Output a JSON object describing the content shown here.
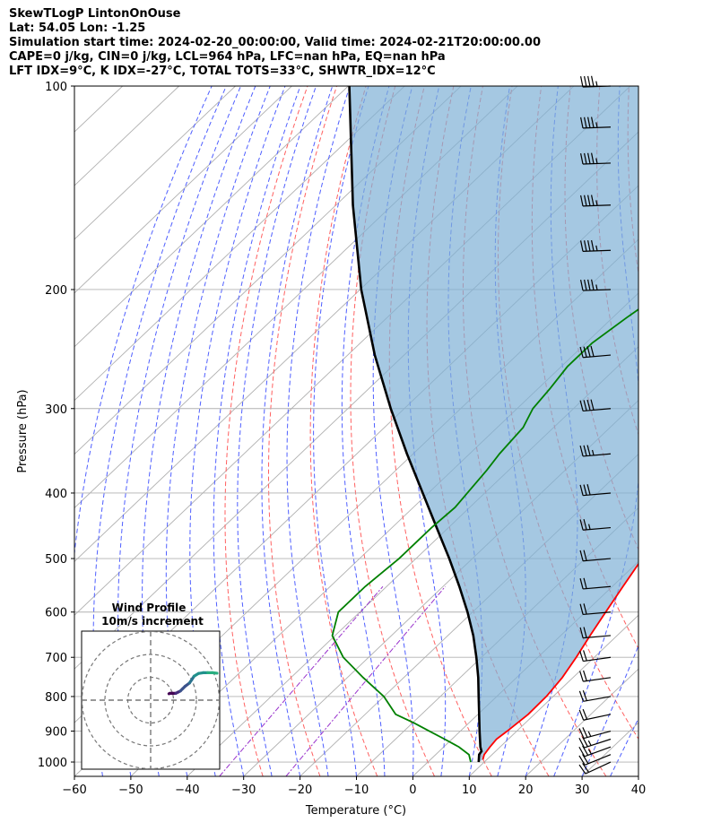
{
  "header": {
    "line1": "SkewTLogP LintonOnOuse",
    "line2": "Lat: 54.05   Lon: -1.25",
    "line3": "Simulation start time: 2024-02-20_00:00:00, Valid time: 2024-02-21T20:00:00.00",
    "line4": "CAPE=0 j/kg, CIN=0 j/kg, LCL=964 hPa, LFC=nan hPa, EQ=nan hPa",
    "line5": "LFT IDX=9°C, K IDX=-27°C, TOTAL TOTS=33°C, SHWTR_IDX=12°C"
  },
  "chart_data": {
    "type": "skewt",
    "xlabel": "Temperature (°C)",
    "ylabel": "Pressure (hPa)",
    "xlim": [
      -60,
      40
    ],
    "ylim": [
      1050,
      100
    ],
    "x_ticks": [
      -60,
      -50,
      -40,
      -30,
      -20,
      -10,
      0,
      10,
      20,
      30,
      40
    ],
    "x_tick_labels": [
      "−60",
      "−50",
      "−40",
      "−30",
      "−20",
      "−10",
      "0",
      "10",
      "20",
      "30",
      "40"
    ],
    "y_ticks": [
      1000,
      900,
      800,
      700,
      600,
      500,
      400,
      300,
      200,
      100
    ],
    "y_tick_labels": [
      "1000",
      "900",
      "800",
      "700",
      "600",
      "500",
      "400",
      "300",
      "200",
      "100"
    ],
    "colors": {
      "temperature": "#ff0000",
      "dewpoint": "#008000",
      "parcel": "#000000",
      "cape_fill": "#7fb1d6",
      "dry_adiabat": "#ff6060",
      "moist_adiabat": "#4f5fff",
      "mixing_ratio": "#9933cc",
      "isotherm": "#b0b0b0"
    },
    "temperature": {
      "pressure": [
        992,
        975,
        950,
        925,
        900,
        875,
        850,
        800,
        750,
        700,
        650,
        600,
        550,
        500,
        450,
        420,
        400,
        370,
        350,
        320,
        300,
        280,
        260,
        250,
        240,
        230,
        220,
        210,
        200,
        190,
        180,
        170,
        160,
        150,
        140,
        130,
        120,
        110,
        100
      ],
      "value": [
        9.3,
        8.6,
        8.2,
        7.9,
        8.3,
        8.6,
        8.9,
        8.8,
        8.1,
        6.8,
        5.2,
        3.6,
        1.9,
        0.1,
        -1.6,
        -2.6,
        -2.9,
        -3.6,
        -4.4,
        -6.2,
        -7.6,
        -10.0,
        -12.5,
        -13.8,
        -14.8,
        -15.1,
        -14.6,
        -13.8,
        -12.8,
        -11.5,
        -9.8,
        -7.0,
        -4.2,
        -1.1,
        2.0,
        5.0,
        8.5,
        10.3,
        11.8
      ]
    },
    "dewpoint": {
      "pressure": [
        1000,
        975,
        950,
        925,
        900,
        875,
        850,
        800,
        750,
        700,
        650,
        600,
        550,
        500,
        450,
        420,
        400,
        370,
        350,
        320,
        300,
        280,
        260,
        240,
        220,
        200,
        185,
        170,
        160,
        150,
        140,
        130,
        120,
        110,
        100
      ],
      "value": [
        7.6,
        5.9,
        2.7,
        -1.3,
        -5.5,
        -9.8,
        -14.6,
        -20.0,
        -27.2,
        -34.5,
        -40.5,
        -43.8,
        -43.8,
        -43.0,
        -43.0,
        -42.6,
        -43.1,
        -43.9,
        -44.7,
        -45.4,
        -47.2,
        -47.9,
        -48.9,
        -48.9,
        -47.5,
        -45.6,
        -44.7,
        -44.5,
        -43.9,
        -42.8,
        -40.7,
        -37.3,
        -33.6,
        -30.3,
        -26.8
      ]
    },
    "parcel": {
      "pressure": [
        1000,
        975,
        964,
        950,
        900,
        850,
        800,
        750,
        700,
        650,
        600,
        550,
        500,
        450,
        400,
        350,
        300,
        250,
        200,
        150,
        100
      ],
      "value": [
        9.0,
        7.7,
        7.5,
        6.5,
        3.4,
        0.2,
        -3.2,
        -6.8,
        -10.9,
        -15.5,
        -20.9,
        -27.1,
        -34.1,
        -42.1,
        -51.0,
        -61.1,
        -72.4,
        -85.2,
        -99.8,
        -117.0,
        -139.8
      ]
    },
    "wind_barbs": {
      "pressure": [
        1000,
        975,
        950,
        925,
        900,
        850,
        800,
        750,
        700,
        650,
        600,
        550,
        500,
        450,
        400,
        350,
        300,
        250,
        200,
        175,
        150,
        130,
        115,
        100
      ],
      "direction_deg": [
        245,
        248,
        250,
        252,
        255,
        258,
        260,
        262,
        262,
        265,
        265,
        265,
        265,
        265,
        265,
        265,
        265,
        265,
        268,
        268,
        268,
        268,
        268,
        268
      ],
      "speed_kt": [
        20,
        22,
        25,
        25,
        25,
        22,
        20,
        20,
        20,
        20,
        20,
        20,
        22,
        25,
        30,
        35,
        40,
        42,
        45,
        45,
        45,
        45,
        45,
        45
      ]
    },
    "inset": {
      "title": "Wind Profile",
      "subtitle": "10m/s increment",
      "rings_ms": [
        10,
        20,
        30
      ],
      "u_ms": [
        8.0,
        8.5,
        9.5,
        11.0,
        12.0,
        13.0,
        14.0,
        15.0,
        17.0,
        18.0,
        19.0,
        21.0,
        23.0,
        25.0,
        27.0,
        29.0
      ],
      "v_ms": [
        2.8,
        3.0,
        3.0,
        3.0,
        3.5,
        4.0,
        5.0,
        6.0,
        7.5,
        9.0,
        10.5,
        11.7,
        12.0,
        12.0,
        12.0,
        11.8
      ]
    }
  }
}
